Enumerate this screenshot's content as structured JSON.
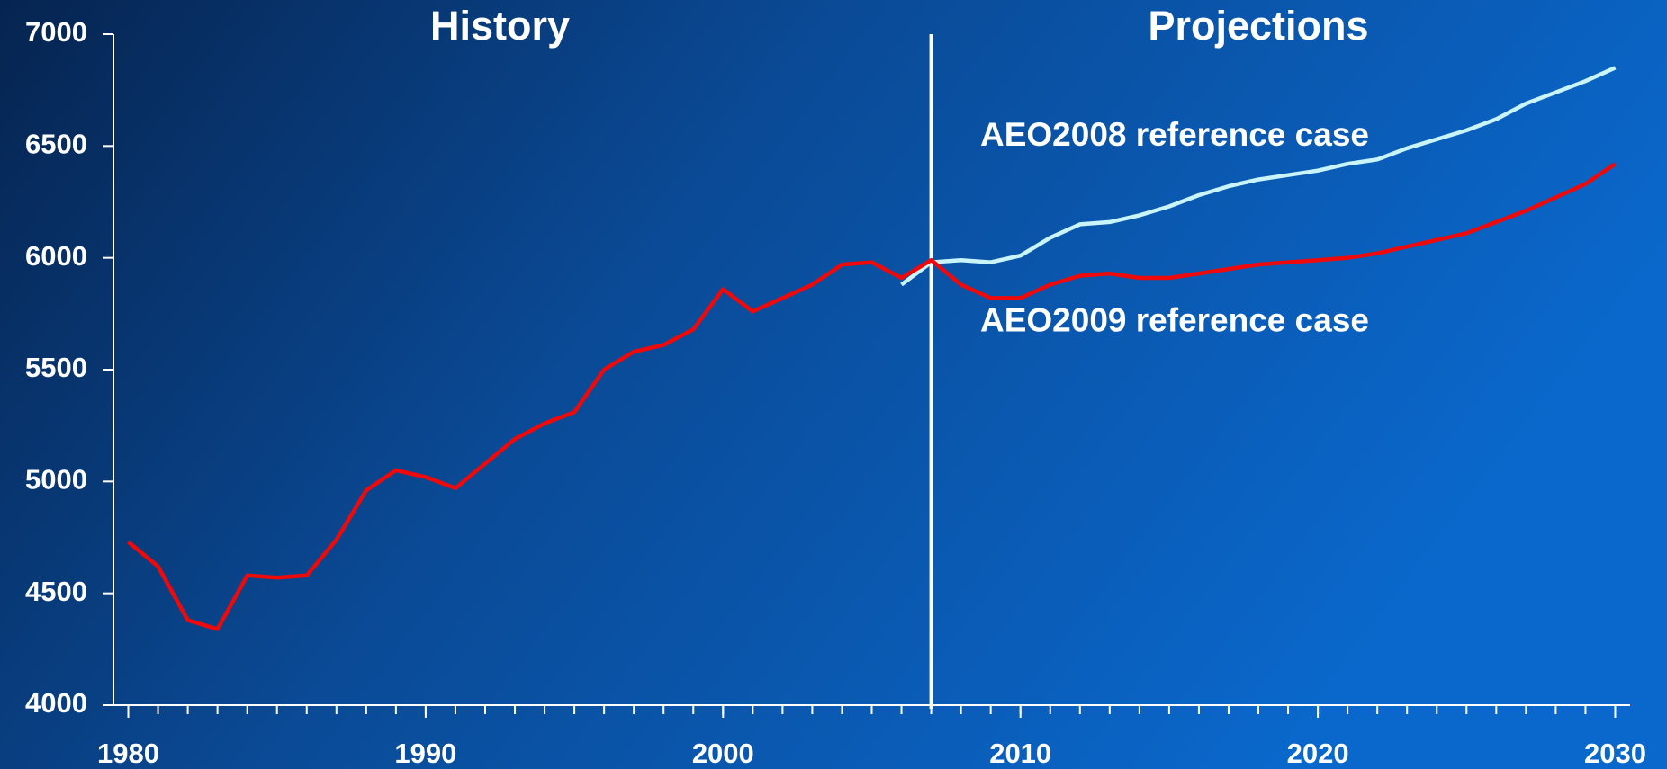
{
  "chart_data": {
    "type": "line",
    "annotations": [
      {
        "text": "History",
        "x": 1992.5
      },
      {
        "text": "Projections",
        "x": 2018
      }
    ],
    "projection_start": 2007,
    "x": [
      1980,
      1981,
      1982,
      1983,
      1984,
      1985,
      1986,
      1987,
      1988,
      1989,
      1990,
      1991,
      1992,
      1993,
      1994,
      1995,
      1996,
      1997,
      1998,
      1999,
      2000,
      2001,
      2002,
      2003,
      2004,
      2005,
      2006,
      2007,
      2008,
      2009,
      2010,
      2011,
      2012,
      2013,
      2014,
      2015,
      2016,
      2017,
      2018,
      2019,
      2020,
      2021,
      2022,
      2023,
      2024,
      2025,
      2026,
      2027,
      2028,
      2029,
      2030
    ],
    "series": [
      {
        "name": "AEO2008 reference case",
        "color": "#c8f4fa",
        "label_y": 6540,
        "values": [
          null,
          null,
          null,
          null,
          null,
          null,
          null,
          null,
          null,
          null,
          null,
          null,
          null,
          null,
          null,
          null,
          null,
          null,
          null,
          null,
          null,
          null,
          null,
          null,
          null,
          null,
          5880,
          5980,
          5990,
          5980,
          6010,
          6090,
          6150,
          6160,
          6190,
          6230,
          6280,
          6320,
          6350,
          6370,
          6390,
          6420,
          6440,
          6490,
          6530,
          6570,
          6620,
          6690,
          6740,
          6790,
          6850
        ]
      },
      {
        "name": "AEO2009 reference case",
        "color": "#ee0a0a",
        "label_y": 5710,
        "values": [
          4730,
          4620,
          4380,
          4340,
          4580,
          4570,
          4580,
          4740,
          4960,
          5050,
          5020,
          4970,
          5080,
          5190,
          5260,
          5310,
          5500,
          5580,
          5610,
          5680,
          5860,
          5760,
          5820,
          5880,
          5970,
          5980,
          5910,
          5990,
          5880,
          5820,
          5820,
          5880,
          5920,
          5930,
          5910,
          5910,
          5930,
          5950,
          5970,
          5980,
          5990,
          6000,
          6020,
          6050,
          6080,
          6110,
          6160,
          6210,
          6270,
          6330,
          6420
        ]
      }
    ],
    "xlim": [
      1979.5,
      2030.5
    ],
    "xticks": [
      1980,
      1990,
      2000,
      2010,
      2020,
      2030
    ],
    "ylim": [
      4000,
      7000
    ],
    "yticks": [
      4000,
      4500,
      5000,
      5500,
      6000,
      6500,
      7000
    ]
  }
}
